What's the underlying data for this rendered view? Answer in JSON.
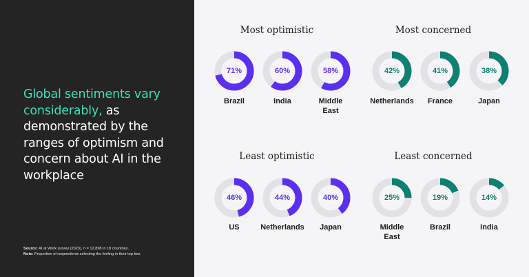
{
  "headline": {
    "highlight": "Global sentiments vary considerably,",
    "rest": " as demonstrated by the ranges of optimism and concern about AI in the workplace"
  },
  "footnote": {
    "source_label": "Source:",
    "source_text": " AI at Work survey (2023), n = 12,898 in 18 countries.",
    "note_label": "Note:",
    "note_text": " Proportion of respondents selecting the feeling in their top two."
  },
  "colors": {
    "optimism": "#5b2ff0",
    "concern": "#0e7f72",
    "track": "#e2e2e6",
    "highlight_text": "#3ee0b8"
  },
  "chart_data": {
    "type": "pie",
    "groups": [
      {
        "key": "most_optimistic",
        "title": "Most optimistic",
        "color_key": "optimism",
        "items": [
          {
            "label": "Brazil",
            "value": 71,
            "display": "71%"
          },
          {
            "label": "India",
            "value": 60,
            "display": "60%"
          },
          {
            "label": "Middle East",
            "value": 58,
            "display": "58%"
          }
        ]
      },
      {
        "key": "most_concerned",
        "title": "Most concerned",
        "color_key": "concern",
        "items": [
          {
            "label": "Netherlands",
            "value": 42,
            "display": "42%"
          },
          {
            "label": "France",
            "value": 41,
            "display": "41%"
          },
          {
            "label": "Japan",
            "value": 38,
            "display": "38%"
          }
        ]
      },
      {
        "key": "least_optimistic",
        "title": "Least optimistic",
        "color_key": "optimism",
        "items": [
          {
            "label": "US",
            "value": 46,
            "display": "46%"
          },
          {
            "label": "Netherlands",
            "value": 44,
            "display": "44%"
          },
          {
            "label": "Japan",
            "value": 40,
            "display": "40%"
          }
        ]
      },
      {
        "key": "least_concerned",
        "title": "Least concerned",
        "color_key": "concern",
        "items": [
          {
            "label": "Middle East",
            "value": 25,
            "display": "25%"
          },
          {
            "label": "Brazil",
            "value": 19,
            "display": "19%"
          },
          {
            "label": "India",
            "value": 14,
            "display": "14%"
          }
        ]
      }
    ]
  }
}
